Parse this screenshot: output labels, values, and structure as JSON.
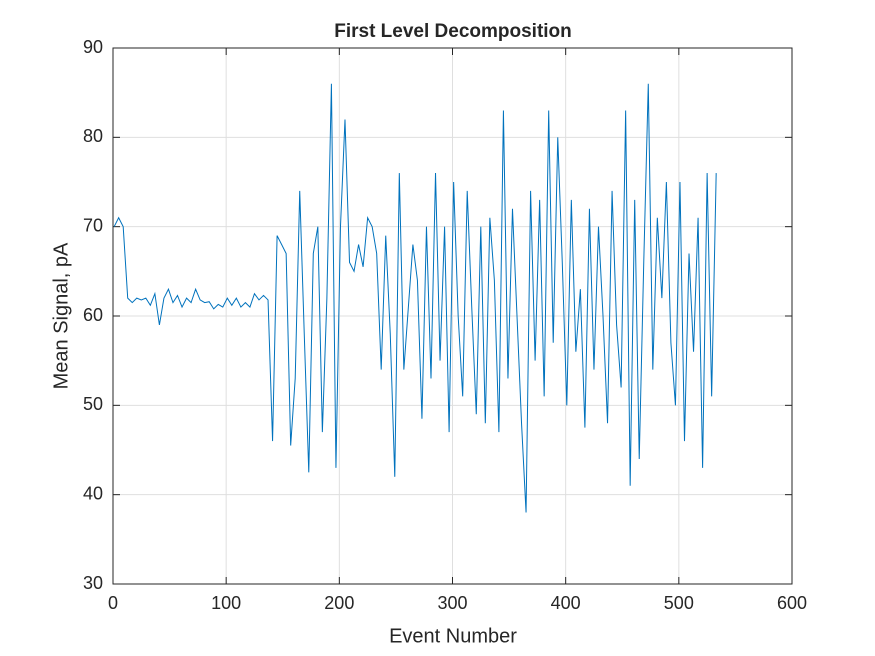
{
  "chart_data": {
    "type": "line",
    "title": "First Level Decomposition",
    "xlabel": "Event Number",
    "ylabel": "Mean Signal, pA",
    "x": [
      1,
      5,
      9,
      13,
      17,
      21,
      25,
      29,
      33,
      37,
      41,
      45,
      49,
      53,
      57,
      61,
      65,
      69,
      73,
      77,
      81,
      85,
      89,
      93,
      97,
      101,
      105,
      109,
      113,
      117,
      121,
      125,
      129,
      133,
      137,
      141,
      145,
      149,
      153,
      157,
      161,
      165,
      169,
      173,
      177,
      181,
      185,
      189,
      193,
      197,
      201,
      205,
      209,
      213,
      217,
      221,
      225,
      229,
      233,
      237,
      241,
      245,
      249,
      253,
      257,
      261,
      265,
      269,
      273,
      277,
      281,
      285,
      289,
      293,
      297,
      301,
      305,
      309,
      313,
      317,
      321,
      325,
      329,
      333,
      337,
      341,
      345,
      349,
      353,
      357,
      361,
      365,
      369,
      373,
      377,
      381,
      385,
      389,
      393,
      397,
      401,
      405,
      409,
      413,
      417,
      421,
      425,
      429,
      433,
      437,
      441,
      445,
      449,
      453,
      457,
      461,
      465,
      469,
      473,
      477,
      481,
      485,
      489,
      493,
      497,
      501,
      505,
      509,
      513,
      517,
      521,
      525,
      529,
      533
    ],
    "series": [
      {
        "color": "#0072bd",
        "values": [
          70,
          71,
          70,
          62,
          61.5,
          62,
          61.8,
          62,
          61.2,
          62.5,
          59,
          62,
          63,
          61.5,
          62.3,
          61,
          62,
          61.5,
          63,
          61.8,
          61.5,
          61.6,
          60.8,
          61.3,
          61,
          62,
          61.2,
          62,
          61,
          61.5,
          61,
          62.5,
          61.8,
          62.3,
          61.8,
          46,
          69,
          68,
          67,
          45.5,
          53,
          74,
          58,
          42.5,
          67,
          70,
          47,
          62,
          86,
          43,
          70,
          82,
          66,
          65,
          68,
          65.5,
          71,
          70,
          67,
          54,
          69,
          58,
          42,
          76,
          54,
          61,
          68,
          64,
          48.5,
          70,
          53,
          76,
          55,
          70,
          47,
          75,
          60,
          51,
          74,
          61,
          49,
          70,
          48,
          71,
          64,
          47,
          83,
          53,
          72,
          60,
          48,
          38,
          74,
          55,
          73,
          51,
          83,
          57,
          80,
          66,
          50,
          73,
          56,
          63,
          47.5,
          72,
          54,
          70,
          60,
          48,
          74,
          59,
          52,
          83,
          41,
          73,
          44,
          66,
          86,
          54,
          71,
          62,
          75,
          57,
          50,
          75,
          46,
          67,
          56,
          71,
          43,
          76,
          51,
          76
        ]
      }
    ],
    "xlim": [
      0,
      600
    ],
    "xticks": [
      0,
      100,
      200,
      300,
      400,
      500,
      600
    ],
    "ylim": [
      30,
      90
    ],
    "yticks": [
      30,
      40,
      50,
      60,
      70,
      80,
      90
    ],
    "grid": true
  }
}
